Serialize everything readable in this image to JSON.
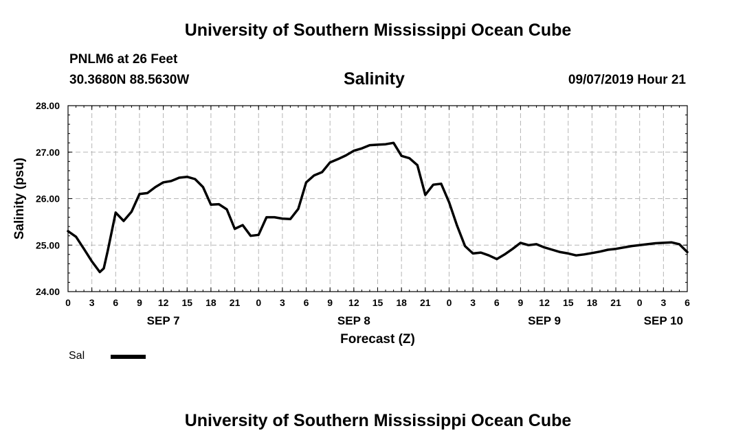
{
  "header": {
    "title": "University of Southern Mississippi Ocean Cube",
    "station": "PNLM6 at 26 Feet",
    "coords": "30.3680N 88.5630W",
    "variable": "Salinity",
    "datetime": "09/07/2019 Hour 21"
  },
  "footer": {
    "title": "University of Southern Mississippi Ocean Cube"
  },
  "legend": {
    "label": "Sal",
    "color": "#000000"
  },
  "chart_data": {
    "type": "line",
    "title": "Salinity",
    "xlabel": "Forecast (Z)",
    "ylabel": "Salinity (psu)",
    "ylim": [
      24.0,
      28.0
    ],
    "xlim": [
      0,
      78
    ],
    "grid": true,
    "y_ticks": [
      24.0,
      25.0,
      26.0,
      27.0,
      28.0
    ],
    "y_tick_labels": [
      "24.00",
      "25.00",
      "26.00",
      "27.00",
      "28.00"
    ],
    "x_ticks": [
      0,
      3,
      6,
      9,
      12,
      15,
      18,
      21,
      24,
      27,
      30,
      33,
      36,
      39,
      42,
      45,
      48,
      51,
      54,
      57,
      60,
      63,
      66,
      69,
      72,
      75,
      78
    ],
    "x_tick_labels": [
      "0",
      "3",
      "6",
      "9",
      "12",
      "15",
      "18",
      "21",
      "0",
      "3",
      "6",
      "9",
      "12",
      "15",
      "18",
      "21",
      "0",
      "3",
      "6",
      "9",
      "12",
      "15",
      "18",
      "21",
      "0",
      "3",
      "6"
    ],
    "day_labels": [
      {
        "x": 12,
        "label": "SEP 7"
      },
      {
        "x": 36,
        "label": "SEP 8"
      },
      {
        "x": 60,
        "label": "SEP 9"
      },
      {
        "x": 75,
        "label": "SEP 10"
      }
    ],
    "series": [
      {
        "name": "Sal",
        "x": [
          0,
          1,
          2,
          3,
          4,
          4.5,
          5,
          6,
          7,
          8,
          9,
          10,
          11,
          12,
          13,
          14,
          15,
          16,
          17,
          18,
          19,
          20,
          21,
          22,
          23,
          24,
          25,
          26,
          27,
          28,
          29,
          30,
          31,
          32,
          33,
          34,
          35,
          36,
          37,
          38,
          39,
          40,
          41,
          42,
          43,
          44,
          45,
          46,
          47,
          48,
          49,
          50,
          51,
          52,
          53,
          54,
          55,
          56,
          57,
          58,
          59,
          60,
          61,
          62,
          63,
          64,
          65,
          66,
          67,
          68,
          69,
          70,
          71,
          72,
          73,
          74,
          75,
          76,
          77,
          78
        ],
        "values": [
          25.3,
          25.18,
          24.92,
          24.65,
          24.42,
          24.5,
          24.88,
          25.7,
          25.52,
          25.72,
          26.1,
          26.12,
          26.25,
          26.35,
          26.38,
          26.45,
          26.47,
          26.42,
          26.25,
          25.87,
          25.88,
          25.77,
          25.35,
          25.43,
          25.2,
          25.22,
          25.6,
          25.6,
          25.57,
          25.56,
          25.78,
          26.35,
          26.5,
          26.57,
          26.78,
          26.85,
          26.93,
          27.03,
          27.08,
          27.15,
          27.16,
          27.17,
          27.2,
          26.92,
          26.87,
          26.72,
          26.08,
          26.3,
          26.32,
          25.92,
          25.42,
          24.98,
          24.82,
          24.84,
          24.78,
          24.7,
          24.8,
          24.92,
          25.05,
          25.0,
          25.02,
          24.95,
          24.9,
          24.85,
          24.82,
          24.78,
          24.8,
          24.83,
          24.86,
          24.9,
          24.92,
          24.95,
          24.98,
          25.0,
          25.02,
          25.04,
          25.05,
          25.06,
          25.02,
          24.85
        ]
      }
    ]
  }
}
